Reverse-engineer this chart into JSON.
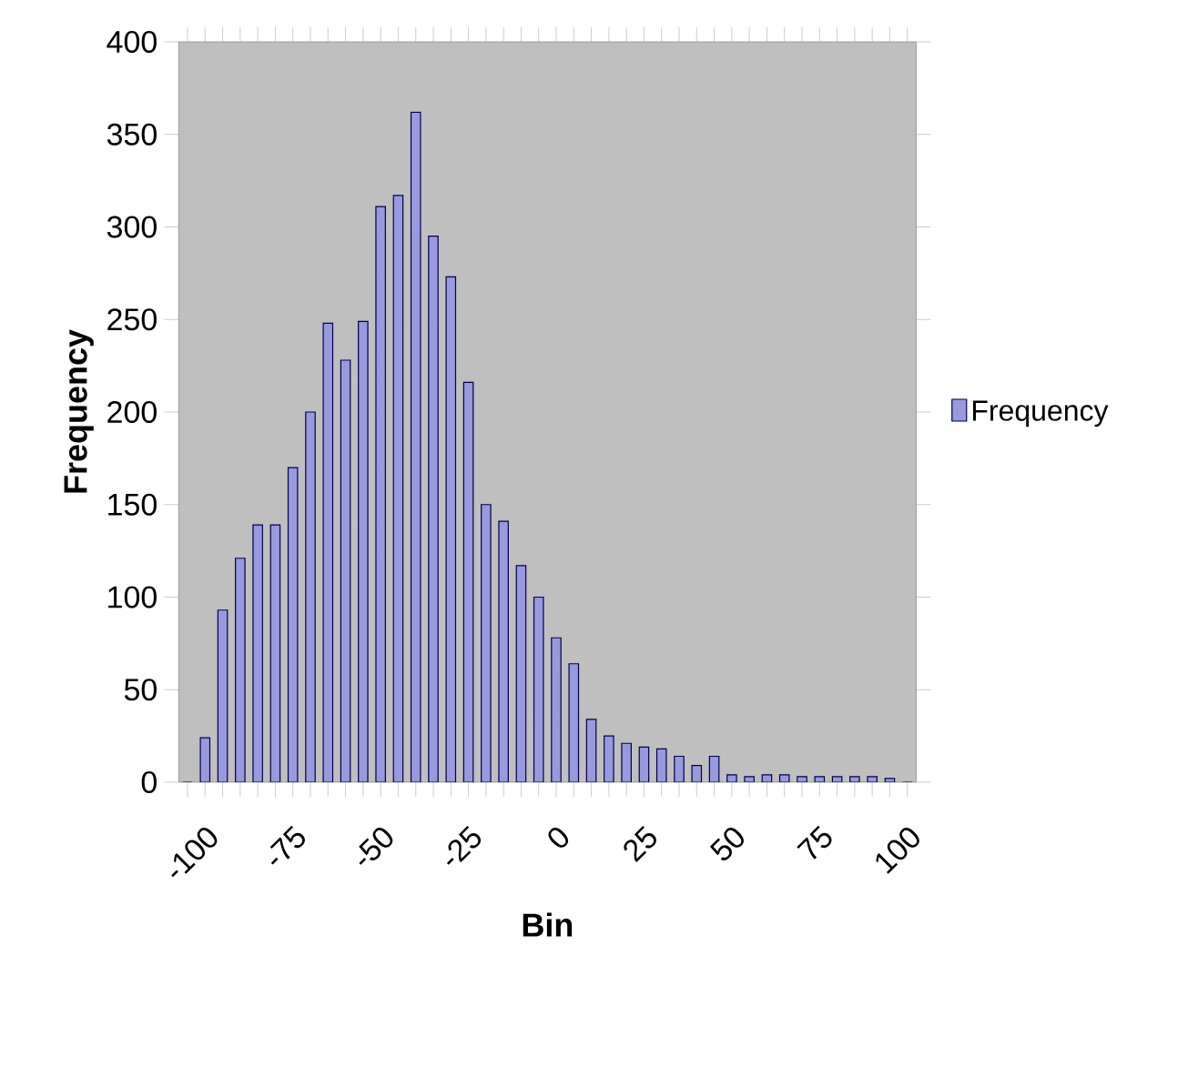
{
  "chart_data": {
    "type": "bar",
    "xlabel": "Bin",
    "ylabel": "Frequency",
    "categories": [
      "-100",
      null,
      null,
      null,
      null,
      "-75",
      null,
      null,
      null,
      null,
      "-50",
      null,
      null,
      null,
      null,
      "-25",
      null,
      null,
      null,
      null,
      "0",
      null,
      null,
      null,
      null,
      "25",
      null,
      null,
      null,
      null,
      "50",
      null,
      null,
      null,
      null,
      "75",
      null,
      null,
      null,
      null,
      "100",
      null
    ],
    "series": [
      {
        "name": "Frequency",
        "color": "#9999dd",
        "values": [
          0,
          24,
          93,
          121,
          139,
          139,
          170,
          200,
          248,
          228,
          249,
          311,
          317,
          362,
          295,
          273,
          216,
          150,
          141,
          117,
          100,
          78,
          64,
          34,
          25,
          21,
          19,
          18,
          14,
          9,
          14,
          4,
          3,
          4,
          4,
          3,
          3,
          3,
          3,
          3,
          2,
          0
        ]
      }
    ],
    "ylim": [
      0,
      400
    ],
    "yticks": [
      0,
      50,
      100,
      150,
      200,
      250,
      300,
      350,
      400
    ],
    "grid": false,
    "legend": "right"
  }
}
